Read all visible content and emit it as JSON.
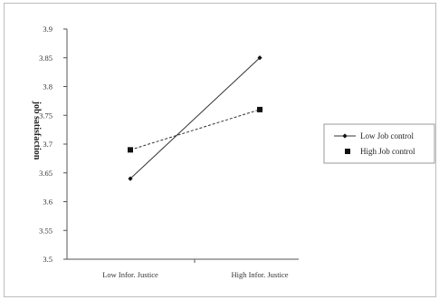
{
  "chart_data": {
    "type": "line",
    "title": "",
    "xlabel": "",
    "ylabel": "job satisfaction",
    "categories": [
      "Low Infor. Justice",
      "High Infor. Justice"
    ],
    "yticks": [
      "3.9",
      "3.85",
      "3.8",
      "3.75",
      "3.7",
      "3.65",
      "3.6",
      "3.55",
      "3.5"
    ],
    "ylim": [
      3.5,
      3.9
    ],
    "grid": false,
    "legend_position": "right",
    "series": [
      {
        "name": "Low Job control",
        "values": [
          3.64,
          3.85
        ],
        "marker": "diamond",
        "line_style": "solid",
        "color": "#333333"
      },
      {
        "name": "High Job control",
        "values": [
          3.69,
          3.76
        ],
        "marker": "square",
        "line_style": "dashed",
        "color": "#333333"
      }
    ]
  }
}
